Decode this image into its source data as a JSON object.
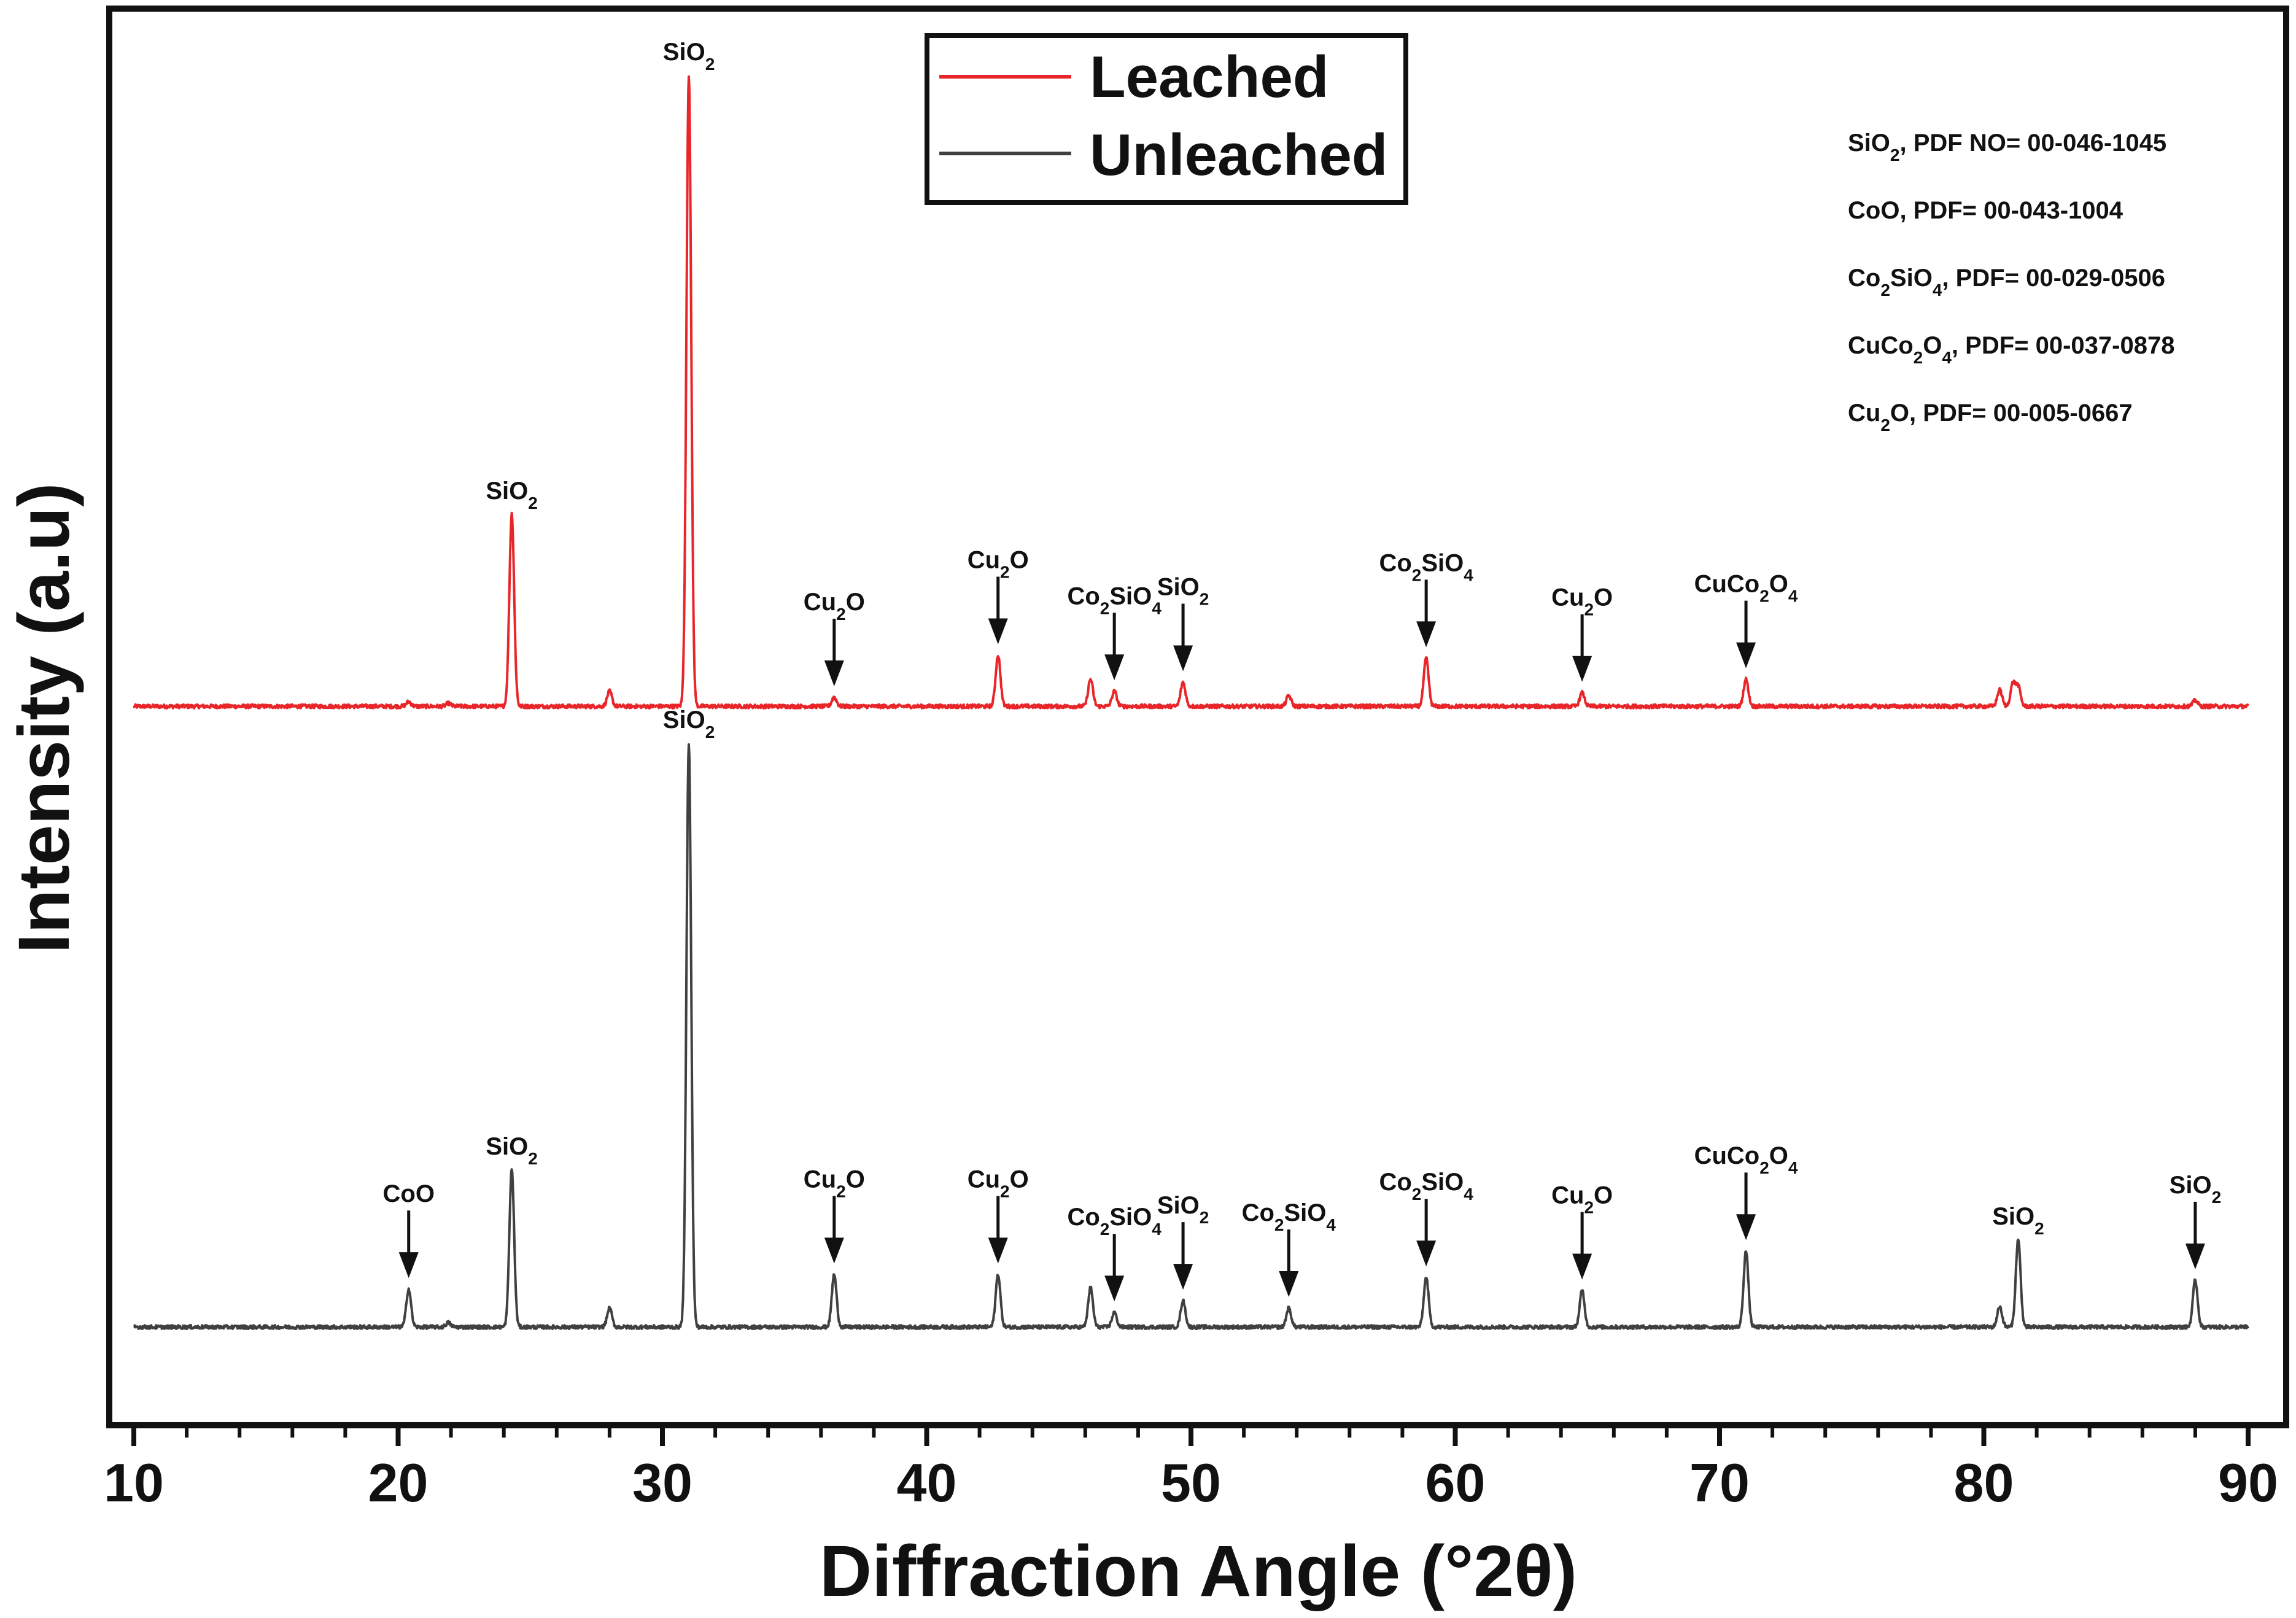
{
  "chart_data": {
    "type": "line",
    "xlabel": "Diffraction Angle (°2θ)",
    "ylabel": "Intensity (a.u)",
    "xlim": [
      10,
      90
    ],
    "xticks": [
      "10",
      "20",
      "30",
      "40",
      "50",
      "60",
      "70",
      "80",
      "90"
    ],
    "grid": false,
    "legend_position": "top-center",
    "legend": [
      {
        "name": "Leached",
        "color": "#e8262a"
      },
      {
        "name": "Unleached",
        "color": "#404040"
      }
    ],
    "series": [
      {
        "name": "Leached",
        "color": "#e8262a",
        "baseline": 0.5,
        "peaks": [
          {
            "x": 20.4,
            "h": 0.3
          },
          {
            "x": 21.9,
            "h": 0.2
          },
          {
            "x": 24.3,
            "h": 12.8
          },
          {
            "x": 28.0,
            "h": 1.0
          },
          {
            "x": 31.0,
            "h": 42.0
          },
          {
            "x": 36.5,
            "h": 0.6
          },
          {
            "x": 42.7,
            "h": 3.4
          },
          {
            "x": 46.2,
            "h": 1.8
          },
          {
            "x": 47.1,
            "h": 1.0
          },
          {
            "x": 49.7,
            "h": 1.6
          },
          {
            "x": 53.7,
            "h": 0.7
          },
          {
            "x": 58.9,
            "h": 3.2
          },
          {
            "x": 64.8,
            "h": 0.9
          },
          {
            "x": 71.0,
            "h": 1.8
          },
          {
            "x": 80.6,
            "h": 1.1
          },
          {
            "x": 81.1,
            "h": 1.5
          },
          {
            "x": 81.3,
            "h": 1.3
          },
          {
            "x": 88.0,
            "h": 0.4
          }
        ],
        "annotations": [
          {
            "text": "SiO",
            "sub": "2",
            "x": 24.3,
            "arrow": false
          },
          {
            "text": "SiO",
            "sub": "2",
            "x": 31.0,
            "arrow": false
          },
          {
            "text": "Cu",
            "sub": "2",
            "after": "O",
            "x": 36.5,
            "arrow": true
          },
          {
            "text": "Cu",
            "sub": "2",
            "after": "O",
            "x": 42.7,
            "arrow": true
          },
          {
            "text": "Co",
            "sub": "2",
            "after": "SiO",
            "sub2": "4",
            "x": 47.1,
            "arrow": true
          },
          {
            "text": "SiO",
            "sub": "2",
            "x": 49.7,
            "arrow": true
          },
          {
            "text": "Co",
            "sub": "2",
            "after": "SiO",
            "sub2": "4",
            "x": 58.9,
            "arrow": true
          },
          {
            "text": "Cu",
            "sub": "2",
            "after": "O",
            "x": 64.8,
            "arrow": true
          },
          {
            "text": "CuCo",
            "sub": "2",
            "after": "O",
            "sub2": "4",
            "x": 71.0,
            "arrow": true
          }
        ]
      },
      {
        "name": "Unleached",
        "color": "#404040",
        "baseline": 0.0,
        "peaks": [
          {
            "x": 20.4,
            "h": 2.6
          },
          {
            "x": 21.9,
            "h": 0.3
          },
          {
            "x": 24.3,
            "h": 10.8
          },
          {
            "x": 28.0,
            "h": 1.3
          },
          {
            "x": 31.0,
            "h": 40.0
          },
          {
            "x": 36.5,
            "h": 3.6
          },
          {
            "x": 42.7,
            "h": 3.6
          },
          {
            "x": 46.2,
            "h": 2.7
          },
          {
            "x": 47.1,
            "h": 1.0
          },
          {
            "x": 49.7,
            "h": 1.8
          },
          {
            "x": 53.7,
            "h": 1.3
          },
          {
            "x": 58.9,
            "h": 3.4
          },
          {
            "x": 64.8,
            "h": 2.5
          },
          {
            "x": 71.0,
            "h": 5.2
          },
          {
            "x": 80.6,
            "h": 1.4
          },
          {
            "x": 81.3,
            "h": 6.0
          },
          {
            "x": 88.0,
            "h": 3.2
          }
        ],
        "annotations": [
          {
            "text": "CoO",
            "x": 20.4,
            "arrow": true
          },
          {
            "text": "SiO",
            "sub": "2",
            "x": 24.3,
            "arrow": false
          },
          {
            "text": "SiO",
            "sub": "2",
            "x": 31.0,
            "arrow": false
          },
          {
            "text": "Cu",
            "sub": "2",
            "after": "O",
            "x": 36.5,
            "arrow": true
          },
          {
            "text": "Cu",
            "sub": "2",
            "after": "O",
            "x": 42.7,
            "arrow": true
          },
          {
            "text": "Co",
            "sub": "2",
            "after": "SiO",
            "sub2": "4",
            "x": 47.1,
            "arrow": true
          },
          {
            "text": "SiO",
            "sub": "2",
            "x": 49.7,
            "arrow": true
          },
          {
            "text": "Co",
            "sub": "2",
            "after": "SiO",
            "sub2": "4",
            "x": 53.7,
            "arrow": true
          },
          {
            "text": "Co",
            "sub": "2",
            "after": "SiO",
            "sub2": "4",
            "x": 58.9,
            "arrow": true
          },
          {
            "text": "Cu",
            "sub": "2",
            "after": "O",
            "x": 64.8,
            "arrow": true
          },
          {
            "text": "CuCo",
            "sub": "2",
            "after": "O",
            "sub2": "4",
            "x": 71.0,
            "arrow": true
          },
          {
            "text": "SiO",
            "sub": "2",
            "x": 81.3,
            "arrow": false
          },
          {
            "text": "SiO",
            "sub": "2",
            "x": 88.0,
            "arrow": true
          }
        ]
      }
    ],
    "references": [
      {
        "formula": "SiO",
        "sub": "2",
        "after": "",
        "sub2": "",
        "pdf": ", PDF NO= 00-046-1045"
      },
      {
        "formula": "CoO",
        "sub": "",
        "after": "",
        "sub2": "",
        "pdf": ", PDF= 00-043-1004"
      },
      {
        "formula": "Co",
        "sub": "2",
        "after": "SiO",
        "sub2": "4",
        "pdf": ", PDF= 00-029-0506"
      },
      {
        "formula": "CuCo",
        "sub": "2",
        "after": "O",
        "sub2": "4",
        "pdf": ", PDF= 00-037-0878"
      },
      {
        "formula": "Cu",
        "sub": "2",
        "after": "O",
        "sub2": "",
        "pdf": ", PDF= 00-005-0667"
      }
    ]
  }
}
